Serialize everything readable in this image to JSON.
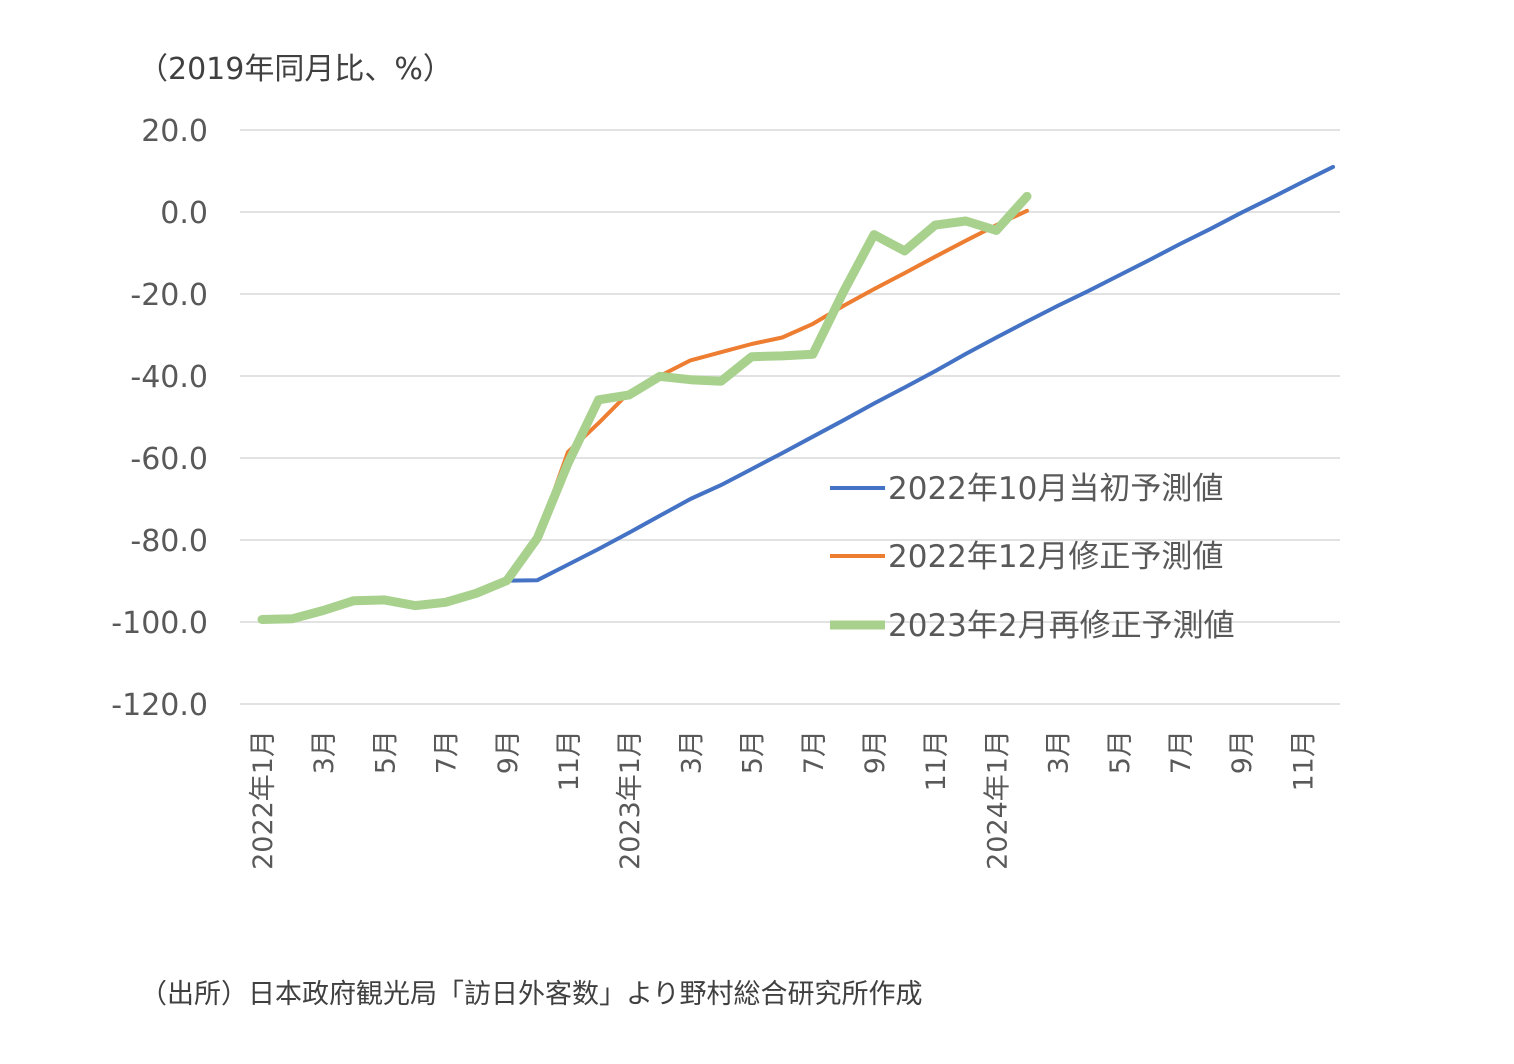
{
  "y_unit_label": "（2019年同月比、%）",
  "source_note": "（出所）日本政府観光局「訪日外客数」より野村総合研究所作成",
  "chart_data": {
    "type": "line",
    "categories": [
      "2022年1月",
      "2月",
      "3月",
      "4月",
      "5月",
      "6月",
      "7月",
      "8月",
      "9月",
      "10月",
      "11月",
      "12月",
      "2023年1月",
      "2月",
      "3月",
      "4月",
      "5月",
      "6月",
      "7月",
      "8月",
      "9月",
      "10月",
      "11月",
      "12月",
      "2024年1月",
      "2月",
      "3月",
      "4月",
      "5月",
      "6月",
      "7月",
      "8月",
      "9月",
      "10月",
      "11月",
      "12月"
    ],
    "tick_labels": [
      "2022年1月",
      "",
      "3月",
      "",
      "5月",
      "",
      "7月",
      "",
      "9月",
      "",
      "11月",
      "",
      "2023年1月",
      "",
      "3月",
      "",
      "5月",
      "",
      "7月",
      "",
      "9月",
      "",
      "11月",
      "",
      "2024年1月",
      "",
      "3月",
      "",
      "5月",
      "",
      "7月",
      "",
      "9月",
      "",
      "11月",
      ""
    ],
    "y_ticks": [
      "20.0",
      "0.0",
      "-20.0",
      "-40.0",
      "-60.0",
      "-80.0",
      "-100.0",
      "-120.0"
    ],
    "ylim": [
      -120,
      20
    ],
    "grid": true,
    "legend_position": "right-middle",
    "series": [
      {
        "name": "2022年10月当初予測値",
        "color": "#4472C4",
        "width": 4,
        "values": [
          -99.4,
          -99.2,
          -97.2,
          -94.8,
          -94.6,
          -96.0,
          -95.2,
          -93.0,
          -89.9,
          -89.8,
          -86.0,
          -82.2,
          -78.2,
          -74.1,
          -70.0,
          -66.6,
          -62.7,
          -58.8,
          -54.8,
          -50.8,
          -46.7,
          -42.8,
          -38.8,
          -34.6,
          -30.6,
          -26.7,
          -22.9,
          -19.3,
          -15.5,
          -11.7,
          -7.8,
          -4.1,
          -0.2,
          3.5,
          7.3,
          11.0
        ]
      },
      {
        "name": "2022年12月修正予測値",
        "color": "#ED7D31",
        "width": 4,
        "values": [
          -99.4,
          -99.2,
          -97.2,
          -94.8,
          -94.6,
          -96.0,
          -95.2,
          -93.0,
          -89.9,
          -79.5,
          -58.5,
          -51.5,
          -44.0,
          -40.0,
          -36.2,
          -34.2,
          -32.2,
          -30.6,
          -27.3,
          -22.9,
          -18.8,
          -14.9,
          -10.9,
          -7.0,
          -3.2,
          0.3,
          null,
          null,
          null,
          null,
          null,
          null,
          null,
          null,
          null,
          null
        ]
      },
      {
        "name": "2023年2月再修正予測値",
        "color": "#A9D18E",
        "width": 9,
        "values": [
          -99.4,
          -99.2,
          -97.2,
          -94.8,
          -94.6,
          -96.0,
          -95.2,
          -93.0,
          -89.9,
          -79.5,
          -61.3,
          -45.8,
          -44.6,
          -40.1,
          -40.9,
          -41.3,
          -35.3,
          -35.1,
          -34.7,
          -19.5,
          -5.5,
          -9.5,
          -3.2,
          -2.2,
          -4.5,
          3.8,
          null,
          null,
          null,
          null,
          null,
          null,
          null,
          null,
          null,
          null
        ]
      }
    ]
  }
}
